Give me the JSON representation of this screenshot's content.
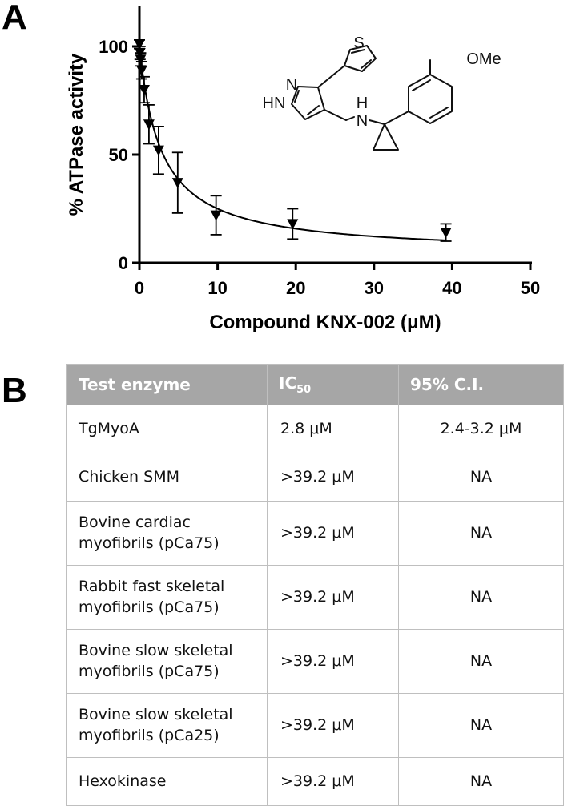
{
  "panels": {
    "a": "A",
    "b": "B"
  },
  "chart_data": {
    "type": "scatter",
    "title": "",
    "xlabel": "Compound KNX-002 (μM)",
    "ylabel": "% ATPase activity",
    "xlim": [
      0,
      50
    ],
    "ylim": [
      0,
      120
    ],
    "xticks": [
      0,
      10,
      20,
      30,
      40,
      50
    ],
    "yticks": [
      0,
      50,
      100
    ],
    "series": [
      {
        "marker": "inverted-triangle",
        "color": "#000000",
        "points": [
          {
            "x": 0.0,
            "y": 101,
            "err": 2
          },
          {
            "x": 0.08,
            "y": 97,
            "err": 3
          },
          {
            "x": 0.15,
            "y": 94,
            "err": 3
          },
          {
            "x": 0.3,
            "y": 89,
            "err": 4
          },
          {
            "x": 0.61,
            "y": 80,
            "err": 6
          },
          {
            "x": 1.22,
            "y": 64,
            "err": 9
          },
          {
            "x": 2.45,
            "y": 52,
            "err": 11
          },
          {
            "x": 4.9,
            "y": 37,
            "err": 14
          },
          {
            "x": 9.8,
            "y": 22,
            "err": 9
          },
          {
            "x": 19.6,
            "y": 18,
            "err": 7
          },
          {
            "x": 39.2,
            "y": 14,
            "err": 4
          }
        ]
      }
    ],
    "fit": {
      "type": "IC50 curve",
      "ic50": 2.8,
      "bottom": 4,
      "top": 100,
      "x_range": [
        0,
        39.2
      ]
    },
    "grid": false,
    "legend": "none"
  },
  "structure": {
    "labels": [
      "S",
      "N",
      "HN",
      "H",
      "N",
      "OMe"
    ]
  },
  "table": {
    "headers": [
      "Test enzyme",
      "IC",
      "95% C.I."
    ],
    "ic_sub": "50",
    "rows": [
      {
        "lines": [
          "TgMyoA"
        ],
        "ic50": "2.8 μM",
        "ci": "2.4-3.2 μM"
      },
      {
        "lines": [
          "Chicken SMM"
        ],
        "ic50": ">39.2 μM",
        "ci": "NA"
      },
      {
        "lines": [
          "Bovine cardiac",
          "myofibrils (pCa75)"
        ],
        "ic50": ">39.2 μM",
        "ci": "NA"
      },
      {
        "lines": [
          "Rabbit fast skeletal",
          "myofibrils (pCa75)"
        ],
        "ic50": ">39.2 μM",
        "ci": "NA"
      },
      {
        "lines": [
          "Bovine slow skeletal",
          "myofibrils (pCa75)"
        ],
        "ic50": ">39.2 μM",
        "ci": "NA"
      },
      {
        "lines": [
          "Bovine slow skeletal",
          "myofibrils (pCa25)"
        ],
        "ic50": ">39.2 μM",
        "ci": "NA"
      },
      {
        "lines": [
          "Hexokinase"
        ],
        "ic50": ">39.2 μM",
        "ci": "NA"
      }
    ]
  }
}
